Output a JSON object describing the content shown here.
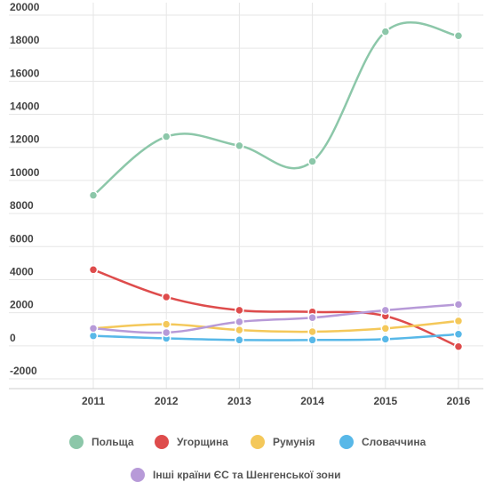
{
  "chart_data": {
    "type": "line",
    "x": [
      "2011",
      "2012",
      "2013",
      "2014",
      "2015",
      "2016"
    ],
    "ylim": [
      -2000,
      20000
    ],
    "yticks": [
      20000,
      18000,
      16000,
      14000,
      12000,
      10000,
      8000,
      6000,
      4000,
      2000,
      0,
      -2000
    ],
    "grid": true,
    "legend_position": "bottom",
    "series": [
      {
        "name": "Польща",
        "color": "#8cc7a9",
        "values": [
          9100,
          12650,
          12100,
          11150,
          19000,
          18750
        ]
      },
      {
        "name": "Угорщина",
        "color": "#de4c4c",
        "values": [
          4600,
          2950,
          2150,
          2050,
          1800,
          -50
        ]
      },
      {
        "name": "Румунія",
        "color": "#f4c85a",
        "values": [
          1050,
          1300,
          950,
          850,
          1050,
          1500
        ]
      },
      {
        "name": "Словаччина",
        "color": "#58b8e8",
        "values": [
          600,
          450,
          350,
          350,
          400,
          700
        ]
      },
      {
        "name": "Інші країни ЄС та Шенгенської зони",
        "color": "#b79ad8",
        "values": [
          1050,
          800,
          1450,
          1700,
          2150,
          2500
        ]
      }
    ]
  }
}
